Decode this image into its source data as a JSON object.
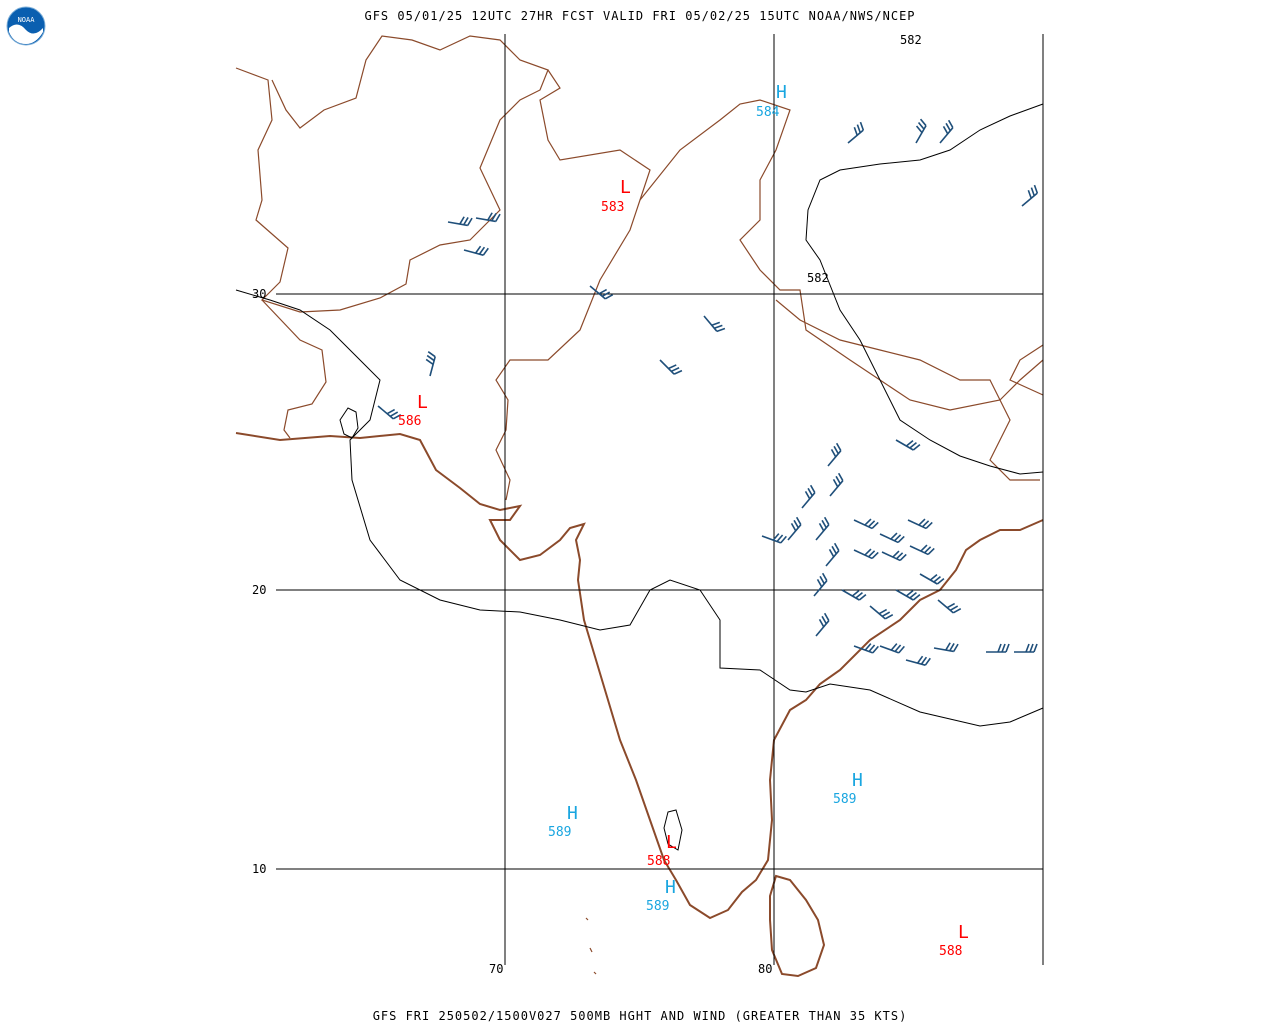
{
  "header": {
    "title": "GFS 05/01/25 12UTC 27HR FCST VALID FRI 05/02/25 15UTC NOAA/NWS/NCEP",
    "logo_text": "NOAA"
  },
  "footer": {
    "caption": "GFS FRI 250502/1500V027 500MB HGHT AND WIND (GREATER THAN 35 KTS)"
  },
  "map": {
    "lat_labels": [
      "30",
      "20",
      "10"
    ],
    "lon_labels": [
      "70",
      "80"
    ],
    "contour_labels": [
      "582",
      "582"
    ],
    "pressure_centers": [
      {
        "type": "H",
        "value": "584"
      },
      {
        "type": "L",
        "value": "583"
      },
      {
        "type": "L",
        "value": "586"
      },
      {
        "type": "H",
        "value": "589"
      },
      {
        "type": "H",
        "value": "589"
      },
      {
        "type": "L",
        "value": "588"
      },
      {
        "type": "H",
        "value": "589"
      },
      {
        "type": "L",
        "value": "588"
      }
    ]
  },
  "colors": {
    "grid": "#000000",
    "border": "#8b4a2b",
    "contour": "#000000",
    "high": "#1aa6e0",
    "low": "#ff0000",
    "wind_barb": "#1f4f7a"
  }
}
